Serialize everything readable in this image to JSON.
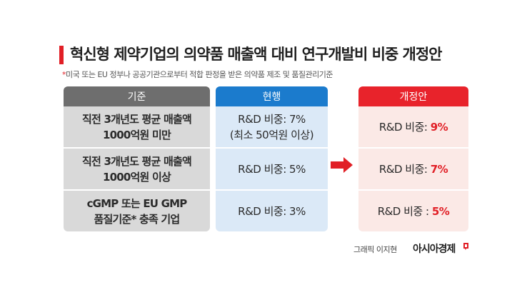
{
  "title": "혁신형 제약기업의 의약품 매출액 대비 연구개발비 비중 개정안",
  "subtitle": {
    "marker": "*",
    "text": "미국 또는 EU 정부나 공공기관으로부터 적합 판정을 받은 의약품 제조 및 품질관리기준"
  },
  "table": {
    "criteria_header": "기준",
    "current_header": "현행",
    "revised_header": "개정안",
    "rows": [
      {
        "criteria_line1": "직전 3개년도 평균 매출액",
        "criteria_line2": "1000억원 미만",
        "current_line1": "R&D 비중: 7%",
        "current_line2": "(최소 50억원 이상)",
        "revised_label": "R&D 비중: ",
        "revised_value": "9%"
      },
      {
        "criteria_line1": "직전 3개년도 평균 매출액",
        "criteria_line2": "1000억원 이상",
        "current_line1": "R&D 비중: 5%",
        "current_line2": "",
        "revised_label": "R&D 비중: ",
        "revised_value": "7%"
      },
      {
        "criteria_line1": "cGMP 또는 EU GMP",
        "criteria_line2": "품질기준* 충족 기업",
        "current_line1": "R&D 비중: 3%",
        "current_line2": "",
        "revised_label": "R&D 비중 : ",
        "revised_value": "5%"
      }
    ]
  },
  "credit": "그래픽 이지현",
  "brand": "아시아경제",
  "colors": {
    "accent_red": "#e11f26",
    "current_blue": "#1b7bcd",
    "criteria_gray": "#6e6e6e"
  },
  "icons": [
    "right-arrow-icon",
    "brand-mark-icon"
  ]
}
